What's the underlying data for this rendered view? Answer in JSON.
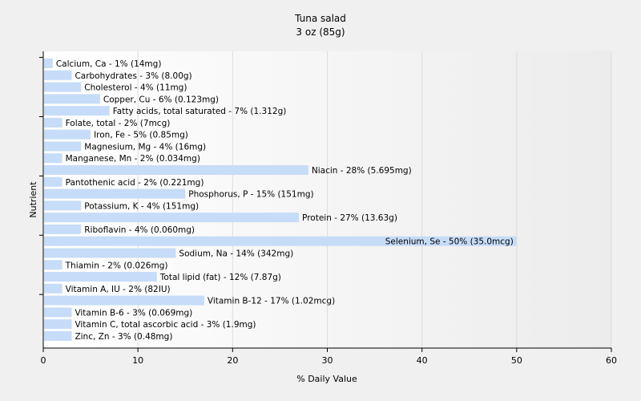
{
  "chart_data": {
    "type": "bar",
    "orientation": "horizontal",
    "title": "Tuna salad",
    "subtitle": "3 oz (85g)",
    "xlabel": "% Daily Value",
    "ylabel": "Nutrient",
    "xlim": [
      0,
      60
    ],
    "xticks": [
      0,
      10,
      20,
      30,
      40,
      50,
      60
    ],
    "grid": "vertical",
    "bar_color": "#c6dcf8",
    "categories": [
      "Calcium, Ca",
      "Carbohydrates",
      "Cholesterol",
      "Copper, Cu",
      "Fatty acids, total saturated",
      "Folate, total",
      "Iron, Fe",
      "Magnesium, Mg",
      "Manganese, Mn",
      "Niacin",
      "Pantothenic acid",
      "Phosphorus, P",
      "Potassium, K",
      "Protein",
      "Riboflavin",
      "Selenium, Se",
      "Sodium, Na",
      "Thiamin",
      "Total lipid (fat)",
      "Vitamin A, IU",
      "Vitamin B-12",
      "Vitamin B-6",
      "Vitamin C, total ascorbic acid",
      "Zinc, Zn"
    ],
    "values": [
      1,
      3,
      4,
      6,
      7,
      2,
      5,
      4,
      2,
      28,
      2,
      15,
      4,
      27,
      4,
      50,
      14,
      2,
      12,
      2,
      17,
      3,
      3,
      3
    ],
    "labels": [
      "Calcium, Ca - 1% (14mg)",
      "Carbohydrates - 3% (8.00g)",
      "Cholesterol - 4% (11mg)",
      "Copper, Cu - 6% (0.123mg)",
      "Fatty acids, total saturated - 7% (1.312g)",
      "Folate, total - 2% (7mcg)",
      "Iron, Fe - 5% (0.85mg)",
      "Magnesium, Mg - 4% (16mg)",
      "Manganese, Mn - 2% (0.034mg)",
      "Niacin - 28% (5.695mg)",
      "Pantothenic acid - 2% (0.221mg)",
      "Phosphorus, P - 15% (151mg)",
      "Potassium, K - 4% (151mg)",
      "Protein - 27% (13.63g)",
      "Riboflavin - 4% (0.060mg)",
      "Selenium, Se - 50% (35.0mcg)",
      "Sodium, Na - 14% (342mg)",
      "Thiamin - 2% (0.026mg)",
      "Total lipid (fat) - 12% (7.87g)",
      "Vitamin A, IU - 2% (82IU)",
      "Vitamin B-12 - 17% (1.02mcg)",
      "Vitamin B-6 - 3% (0.069mg)",
      "Vitamin C, total ascorbic acid - 3% (1.9mg)",
      "Zinc, Zn - 3% (0.48mg)"
    ]
  }
}
